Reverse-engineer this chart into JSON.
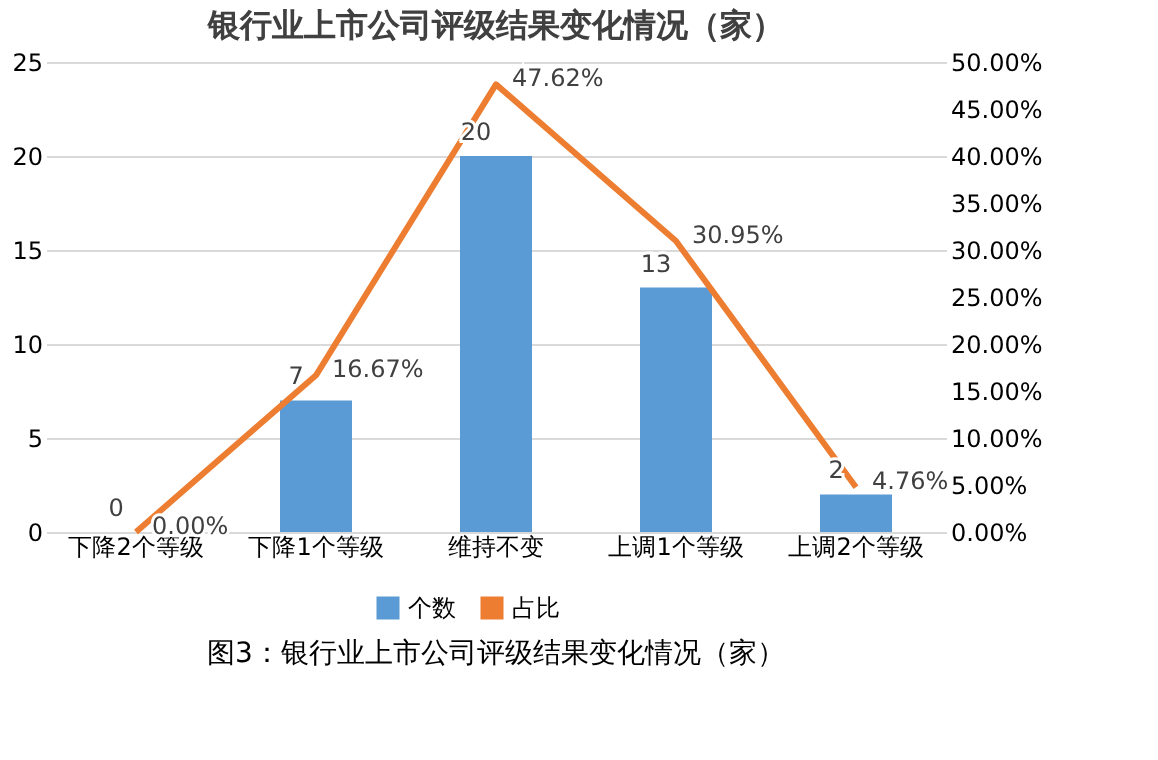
{
  "chart_data": {
    "type": "bar",
    "title": "银行业上市公司评级结果变化情况（家）",
    "categories": [
      "下降2个等级",
      "下降1个等级",
      "维持不变",
      "上调1个等级",
      "上调2个等级"
    ],
    "series": [
      {
        "name": "个数",
        "type": "bar",
        "color": "#5b9bd5",
        "values": [
          0,
          7,
          20,
          13,
          2
        ],
        "value_labels": [
          "0",
          "7",
          "20",
          "13",
          "2"
        ]
      },
      {
        "name": "占比",
        "type": "line",
        "axis": "y2",
        "color": "#ed7d31",
        "values": [
          0,
          16.67,
          47.62,
          30.95,
          4.76
        ],
        "value_labels": [
          "0.00%",
          "16.67%",
          "47.62%",
          "30.95%",
          "4.76%"
        ]
      }
    ],
    "ylim": [
      0,
      25
    ],
    "yticks": [
      0,
      5,
      10,
      15,
      20,
      25
    ],
    "y2lim": [
      0,
      50
    ],
    "y2ticks": [
      {
        "value": 0,
        "label": "0.00%"
      },
      {
        "value": 5,
        "label": "5.00%"
      },
      {
        "value": 10,
        "label": "10.00%"
      },
      {
        "value": 15,
        "label": "15.00%"
      },
      {
        "value": 20,
        "label": "20.00%"
      },
      {
        "value": 25,
        "label": "25.00%"
      },
      {
        "value": 30,
        "label": "30.00%"
      },
      {
        "value": 35,
        "label": "35.00%"
      },
      {
        "value": 40,
        "label": "40.00%"
      },
      {
        "value": 45,
        "label": "45.00%"
      },
      {
        "value": 50,
        "label": "50.00%"
      }
    ],
    "grid": "y",
    "legend": "bottom",
    "marker": "none",
    "line_style": "solid",
    "annotations": [
      "图3：银行业上市公司评级结果变化情况（家）"
    ]
  }
}
